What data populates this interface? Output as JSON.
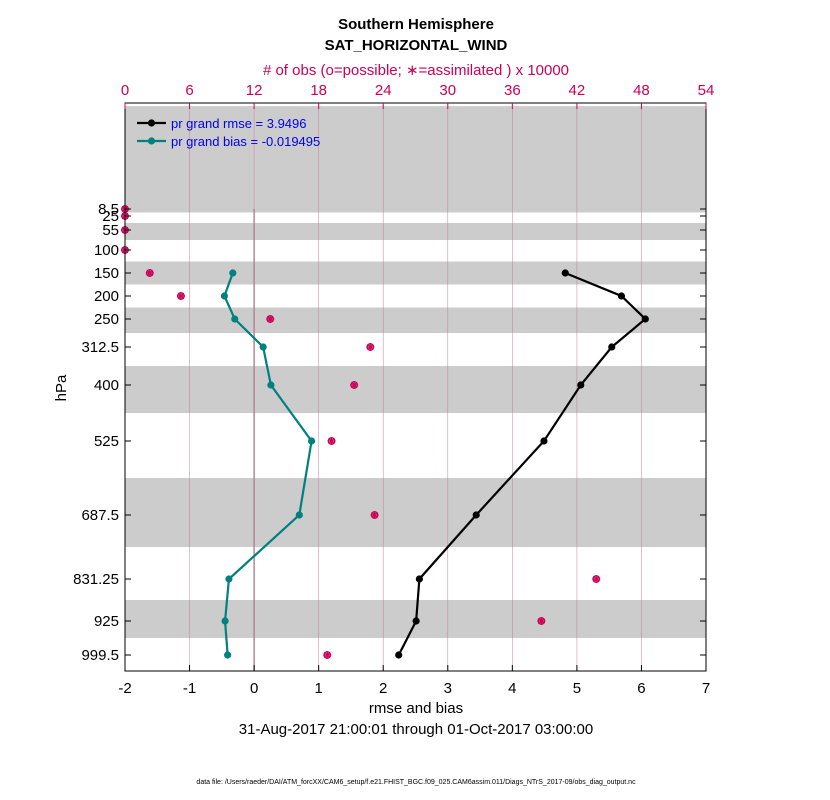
{
  "chart_data": {
    "type": "line",
    "title": "Southern Hemisphere",
    "subtitle": "SAT_HORIZONTAL_WIND",
    "top_axis_label": "# of obs (o=possible; ∗=assimilated ) x 10000",
    "xlabel": "rmse and bias",
    "ylabel": "hPa",
    "date_range": "31-Aug-2017 21:00:01 through 01-Oct-2017 03:00:00",
    "footnote": "data file: /Users/raeder/DAI/ATM_forcXX/CAM6_setup/f.e21.FHIST_BGC.f09_025.CAM6assim.011/Diags_NTrS_2017-09/obs_diag_output.nc",
    "xlim": [
      -2,
      7
    ],
    "top_xlim": [
      0,
      54
    ],
    "x_ticks": [
      "-2",
      "-1",
      "0",
      "1",
      "2",
      "3",
      "4",
      "5",
      "6",
      "7"
    ],
    "top_ticks": [
      "0",
      "6",
      "12",
      "18",
      "24",
      "30",
      "36",
      "42",
      "48",
      "54"
    ],
    "levels": [
      8.5,
      25,
      55,
      100,
      150,
      200,
      250,
      312.5,
      400,
      525,
      687.5,
      831.25,
      925,
      999.5
    ],
    "level_labels": [
      "8.5",
      "25",
      "55",
      "100",
      "150",
      "200",
      "250",
      "312.5",
      "400",
      "525",
      "687.5",
      "831.25",
      "925",
      "999.5"
    ],
    "series": [
      {
        "name": "pr grand rmse = 3.9496",
        "color": "#000000",
        "levels": [
          150,
          200,
          250,
          312.5,
          400,
          525,
          687.5,
          831.25,
          925,
          999.5
        ],
        "values": [
          4.82,
          5.69,
          6.06,
          5.54,
          5.06,
          4.49,
          3.44,
          2.56,
          2.51,
          2.24
        ]
      },
      {
        "name": "pr grand bias = -0.019495",
        "color": "#00807f",
        "levels": [
          150,
          200,
          250,
          312.5,
          400,
          525,
          687.5,
          831.25,
          925,
          999.5
        ],
        "values": [
          -0.33,
          -0.46,
          -0.3,
          0.14,
          0.26,
          0.89,
          0.7,
          -0.39,
          -0.45,
          -0.41
        ]
      }
    ],
    "obs_count": {
      "color": "#cc0055",
      "levels": [
        8.5,
        25,
        55,
        100,
        150,
        200,
        250,
        312.5,
        400,
        525,
        687.5,
        831.25,
        925,
        999.5
      ],
      "values": [
        0.0,
        0.0,
        0.0,
        0.0,
        2.3,
        5.2,
        13.5,
        22.8,
        21.3,
        19.2,
        23.2,
        43.8,
        38.7,
        18.8
      ]
    }
  }
}
